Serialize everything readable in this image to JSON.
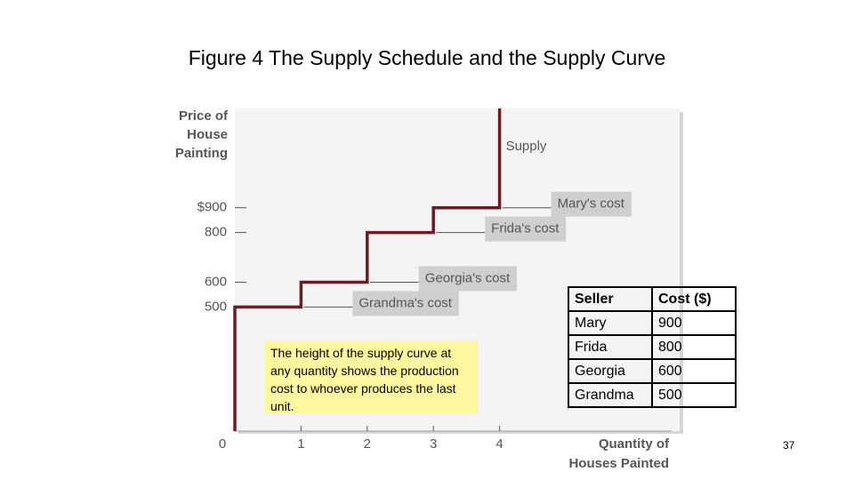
{
  "title": "Figure 4 The Supply Schedule and the Supply Curve",
  "chart_data": {
    "type": "line",
    "ylabel": [
      "Price of",
      "House",
      "Painting"
    ],
    "xlabel": [
      "Quantity of",
      "Houses Painted"
    ],
    "xlim": [
      0,
      6.6
    ],
    "ylim": [
      0,
      1300
    ],
    "xticks": [
      0,
      1,
      2,
      3,
      4
    ],
    "yticks": [
      {
        "value": 900,
        "label": "$900"
      },
      800,
      600,
      500
    ],
    "series": [
      {
        "name": "Supply",
        "color": "#6b1d24",
        "x": [
          0,
          0,
          1,
          1,
          2,
          2,
          3,
          3,
          4,
          4
        ],
        "values": [
          0,
          500,
          500,
          600,
          600,
          800,
          800,
          900,
          900,
          1300
        ]
      }
    ],
    "annotations": [
      {
        "text": "Mary's cost",
        "value": 900
      },
      {
        "text": "Frida's cost",
        "value": 800
      },
      {
        "text": "Georgia's cost",
        "value": 600
      },
      {
        "text": "Grandma's cost",
        "value": 500
      }
    ]
  },
  "note": "The height of the supply curve at any quantity shows the production cost to whoever produces the last unit.",
  "table": {
    "header": [
      "Seller",
      "Cost ($)"
    ],
    "rows": [
      [
        "Mary",
        "900"
      ],
      [
        "Frida",
        "800"
      ],
      [
        "Georgia",
        "600"
      ],
      [
        "Grandma",
        "500"
      ]
    ]
  },
  "page_number": "37"
}
